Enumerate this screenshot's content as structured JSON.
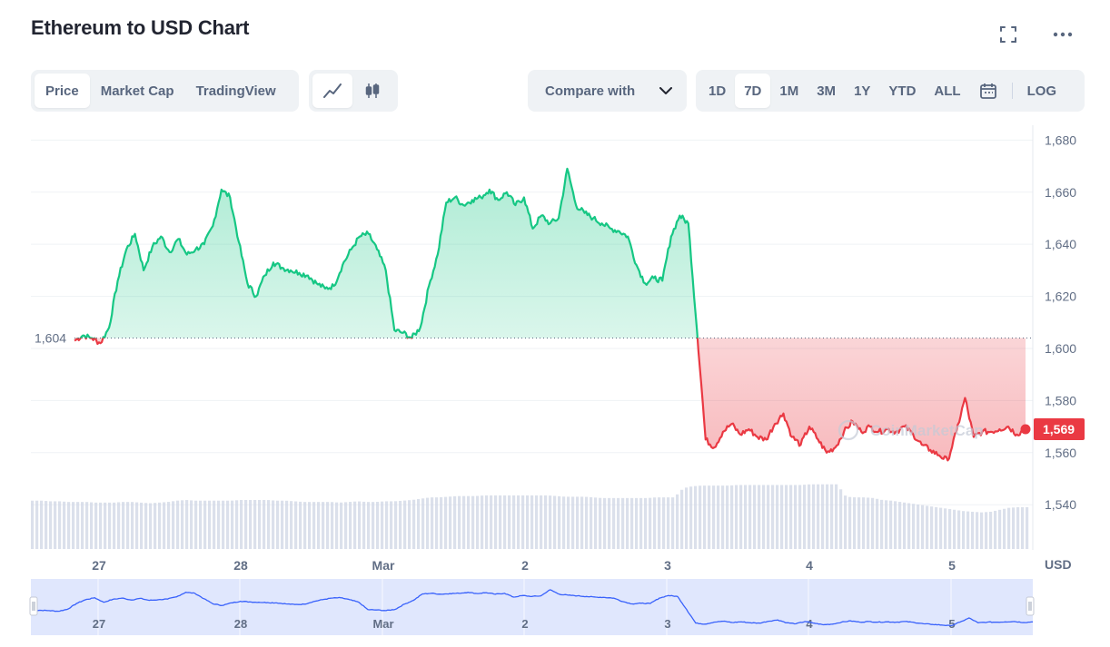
{
  "title": "Ethereum to USD Chart",
  "icons": {
    "fullscreen": "fullscreen-icon",
    "more": "more-icon"
  },
  "view_tabs": [
    {
      "label": "Price",
      "active": true
    },
    {
      "label": "Market Cap",
      "active": false
    },
    {
      "label": "TradingView",
      "active": false
    }
  ],
  "chart_types": [
    {
      "icon": "line-chart-icon",
      "active": true
    },
    {
      "icon": "candlestick-icon",
      "active": false
    }
  ],
  "compare": {
    "label": "Compare with",
    "icon": "chevron-down-icon"
  },
  "ranges": [
    {
      "label": "1D",
      "active": false
    },
    {
      "label": "7D",
      "active": true
    },
    {
      "label": "1M",
      "active": false
    },
    {
      "label": "3M",
      "active": false
    },
    {
      "label": "1Y",
      "active": false
    },
    {
      "label": "YTD",
      "active": false
    },
    {
      "label": "ALL",
      "active": false
    }
  ],
  "calendar_icon": "calendar-icon",
  "log_label": "LOG",
  "colors": {
    "up": "#16c784",
    "down": "#ea3943",
    "grid": "#eff2f5",
    "volume": "#cfd6e4",
    "navigator_fill": "#dde4fd",
    "navigator_line": "#3861fb",
    "axis_text": "#616e85"
  },
  "watermark": "CoinMarketCap",
  "chart_data": {
    "type": "area",
    "title": "Ethereum to USD Chart",
    "ylabel": "USD",
    "y_ticks": [
      1680,
      1660,
      1640,
      1620,
      1600,
      1580,
      1560,
      1540
    ],
    "ylim": [
      1523,
      1685
    ],
    "x_ticks": [
      "27",
      "28",
      "Mar",
      "2",
      "3",
      "4",
      "5"
    ],
    "baseline": 1604,
    "baseline_label": "1,604",
    "current_price": 1569,
    "current_price_label": "1,569",
    "y_tick_labels": [
      "1,680",
      "1,660",
      "1,640",
      "1,620",
      "1,600",
      "1,580",
      "1,560",
      "1,540"
    ],
    "x": [
      0.0,
      0.05,
      0.1,
      0.15,
      0.2,
      0.25,
      0.3,
      0.35,
      0.4,
      0.45,
      0.5,
      0.55,
      0.6,
      0.65,
      0.7,
      0.75,
      0.8,
      0.85,
      0.9,
      0.95,
      1.0,
      1.05,
      1.1,
      1.15,
      1.2,
      1.25,
      1.3,
      1.35,
      1.4,
      1.45,
      1.5,
      1.55,
      1.6,
      1.65,
      1.7,
      1.75,
      1.8,
      1.85,
      1.9,
      1.95,
      2.0,
      2.05,
      2.1,
      2.15,
      2.2,
      2.25,
      2.3,
      2.35,
      2.4,
      2.45,
      2.5,
      2.55,
      2.6,
      2.65,
      2.7,
      2.75,
      2.8,
      2.85,
      2.9,
      2.95,
      3.0,
      3.05,
      3.1,
      3.15,
      3.2,
      3.25,
      3.3,
      3.35,
      3.4,
      3.45,
      3.5,
      3.55,
      3.6,
      3.65,
      3.7,
      3.75,
      3.8,
      3.85,
      3.9,
      3.95,
      4.0,
      4.05,
      4.1,
      4.15,
      4.2,
      4.25,
      4.3,
      4.35,
      4.4,
      4.45,
      4.5,
      4.55,
      4.6,
      4.65,
      4.7,
      4.75,
      4.8,
      4.85,
      4.9,
      4.95,
      5.0,
      5.05,
      5.1,
      5.15,
      5.2,
      5.25,
      5.3,
      5.35,
      5.4,
      5.45,
      5.5
    ],
    "price": [
      1603,
      1605,
      1604,
      1602,
      1608,
      1626,
      1638,
      1644,
      1630,
      1639,
      1643,
      1637,
      1642,
      1636,
      1638,
      1640,
      1647,
      1661,
      1658,
      1641,
      1625,
      1620,
      1628,
      1633,
      1631,
      1630,
      1629,
      1628,
      1625,
      1623,
      1624,
      1632,
      1638,
      1643,
      1644,
      1638,
      1630,
      1607,
      1606,
      1604,
      1608,
      1624,
      1636,
      1656,
      1658,
      1655,
      1657,
      1658,
      1661,
      1657,
      1660,
      1655,
      1658,
      1646,
      1651,
      1648,
      1650,
      1669,
      1655,
      1652,
      1650,
      1648,
      1646,
      1645,
      1643,
      1632,
      1625,
      1627,
      1626,
      1643,
      1651,
      1648,
      1607,
      1565,
      1562,
      1568,
      1571,
      1567,
      1569,
      1566,
      1565,
      1571,
      1575,
      1566,
      1563,
      1570,
      1565,
      1560,
      1562,
      1568,
      1572,
      1568,
      1570,
      1568,
      1569,
      1568,
      1570,
      1567,
      1563,
      1561,
      1559,
      1557,
      1568,
      1581,
      1566,
      1568,
      1568,
      1569,
      1570,
      1567,
      1569
    ],
    "volume": [
      0.74,
      0.74,
      0.73,
      0.73,
      0.72,
      0.72,
      0.72,
      0.71,
      0.71,
      0.71,
      0.72,
      0.72,
      0.71,
      0.7,
      0.71,
      0.72,
      0.74,
      0.75,
      0.74,
      0.74,
      0.74,
      0.74,
      0.74,
      0.75,
      0.75,
      0.75,
      0.75,
      0.74,
      0.74,
      0.73,
      0.72,
      0.72,
      0.72,
      0.72,
      0.71,
      0.72,
      0.73,
      0.72,
      0.72,
      0.73,
      0.73,
      0.74,
      0.75,
      0.77,
      0.79,
      0.79,
      0.8,
      0.81,
      0.81,
      0.81,
      0.82,
      0.82,
      0.82,
      0.82,
      0.82,
      0.82,
      0.82,
      0.82,
      0.81,
      0.8,
      0.8,
      0.8,
      0.79,
      0.78,
      0.78,
      0.78,
      0.78,
      0.78,
      0.78,
      0.79,
      0.79,
      0.79,
      0.93,
      0.96,
      0.97,
      0.97,
      0.97,
      0.97,
      0.98,
      0.98,
      0.98,
      0.98,
      0.98,
      0.98,
      0.98,
      0.98,
      0.99,
      0.99,
      0.99,
      0.99,
      0.8,
      0.79,
      0.79,
      0.78,
      0.75,
      0.74,
      0.72,
      0.7,
      0.68,
      0.66,
      0.64,
      0.62,
      0.6,
      0.58,
      0.57,
      0.56,
      0.57,
      0.6,
      0.63,
      0.64,
      0.64
    ],
    "legend": "none",
    "grid": true
  }
}
